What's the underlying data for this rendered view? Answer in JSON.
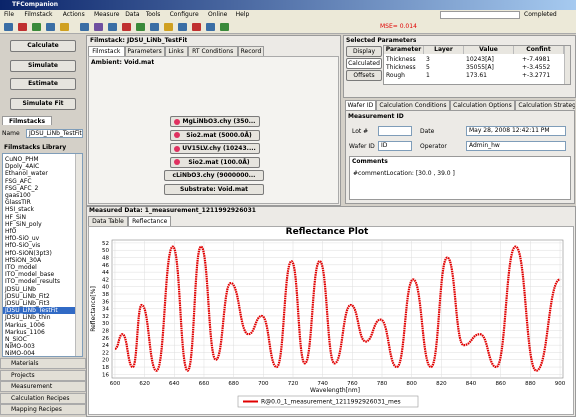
{
  "window_title": "TFCompanion",
  "menu": [
    "File",
    "Filmstack",
    "Actions",
    "Measure",
    "Data",
    "Tools",
    "Configure",
    "Online",
    "Help"
  ],
  "progress_label": "Completed",
  "mse": "MSE= 0.014",
  "actions": [
    "Calculate",
    "Simulate",
    "Estimate",
    "Simulate Fit"
  ],
  "filmstacks_tab": "Filmstacks",
  "name_label": "Name",
  "name_value": "JDSU_LiNb_TestFit",
  "library": {
    "title": "Filmstacks Library",
    "items": [
      "CuNO_PHM",
      "Dpoly_4AIC",
      "Ethanol_water",
      "FSG_AFC",
      "FSG_AFC_2",
      "gaas100",
      "GlassTIR",
      "HSI_stack",
      "HF_SiN",
      "HF_SiN_poly",
      "HfO",
      "HfO-SiO_uv",
      "HfO-SiO_vis",
      "HfO-SiON(3pt3)",
      "HfSiON_30A",
      "ITO_model",
      "ITO_model_base",
      "ITO_model_results",
      "JDSU_LiNb",
      "JDSU_LiNb_Fit2",
      "JDSU_LiNb_Fit3",
      "JDSU_LiNb_TestFit",
      "JDSU_LiNb_thin",
      "Markus_1006",
      "Markus_1106",
      "N_SiOC",
      "NiMO-003",
      "NiMO-004"
    ],
    "selected": 21
  },
  "accordion": [
    "Materials",
    "Projects",
    "Measurement",
    "Calculation Recipes",
    "Mapping Recipes"
  ],
  "filmstack": {
    "title": "Filmstack: JDSU_LiNb_TestFit",
    "tabs": [
      "Filmstack",
      "Parameters",
      "Links",
      "RT Conditions",
      "Record"
    ],
    "ambient": "Ambient: Void.mat",
    "layers": [
      "MgLiNbO3.chy (350...",
      "Sio2.mat (5000.0Å)",
      "UV15LV.chy (10243....",
      "Sio2.mat (100.0Å)",
      "cLiNbO3.chy (9000000..."
    ],
    "substrate": "Substrate: Void.mat"
  },
  "selected_parameters": {
    "title": "Selected Parameters",
    "buttons": [
      "Display",
      "Calculated",
      "Offsets"
    ],
    "columns": [
      "Parameter",
      "Layer",
      "Value",
      "Confint"
    ],
    "rows": [
      [
        "Thickness",
        "3",
        "10243[Å]",
        "+-7.4981"
      ],
      [
        "Thickness",
        "5",
        "35055[Å]",
        "+-3.4552"
      ],
      [
        "Rough",
        "1",
        "173.61",
        "+-3.2771"
      ]
    ]
  },
  "wafer": {
    "tabs": [
      "Wafer ID",
      "Calculation Conditions",
      "Calculation Options",
      "Calculation Strategy"
    ],
    "title": "Measurement ID",
    "lot_label": "Lot #",
    "date_label": "Date",
    "date_value": "May 28, 2008 12:42:11 PM",
    "wafer_label": "Wafer ID",
    "wafer_value": "ID",
    "operator_label": "Operator",
    "operator_value": "Admin_hw",
    "comments_title": "Comments",
    "comments": "#commentLocation: [30.0 , 39.0 ]"
  },
  "measured": {
    "title": "Measured Data: 1_measurement_1211992926031",
    "tabs": [
      "Data Table",
      "Reflectance"
    ]
  },
  "chart_data": {
    "type": "line",
    "title": "Reflectance Plot",
    "x_label": "Wavelength[nm]",
    "y_label": "Reflectance[%]",
    "x": [
      600,
      605,
      612,
      618,
      628,
      639,
      649,
      658,
      668,
      678,
      690,
      699,
      709,
      719,
      728,
      738,
      748,
      759,
      769,
      779,
      790,
      801,
      813,
      824,
      835,
      846,
      857,
      870,
      884,
      900
    ],
    "series": [
      {
        "name": "R@0.0_1_measurement_1211992926031_mes",
        "color": "#e00000",
        "values": [
          23,
          27,
          18,
          35,
          17,
          51,
          17,
          51,
          20,
          41,
          27,
          32,
          18,
          47,
          19,
          47,
          19,
          35,
          25,
          31,
          18,
          42,
          18,
          48,
          24,
          27,
          18,
          51,
          17,
          42
        ]
      }
    ],
    "xlim": [
      598,
      902
    ],
    "ylim": [
      15,
      52.8
    ],
    "xticks": [
      600,
      620,
      640,
      660,
      680,
      700,
      720,
      740,
      760,
      780,
      800,
      820,
      840,
      860,
      880,
      900
    ],
    "yticks": [
      16,
      18,
      20,
      22,
      24,
      26,
      28,
      30,
      32,
      34,
      36,
      38,
      40,
      42,
      44,
      46,
      48,
      50,
      52
    ],
    "grid": true
  }
}
